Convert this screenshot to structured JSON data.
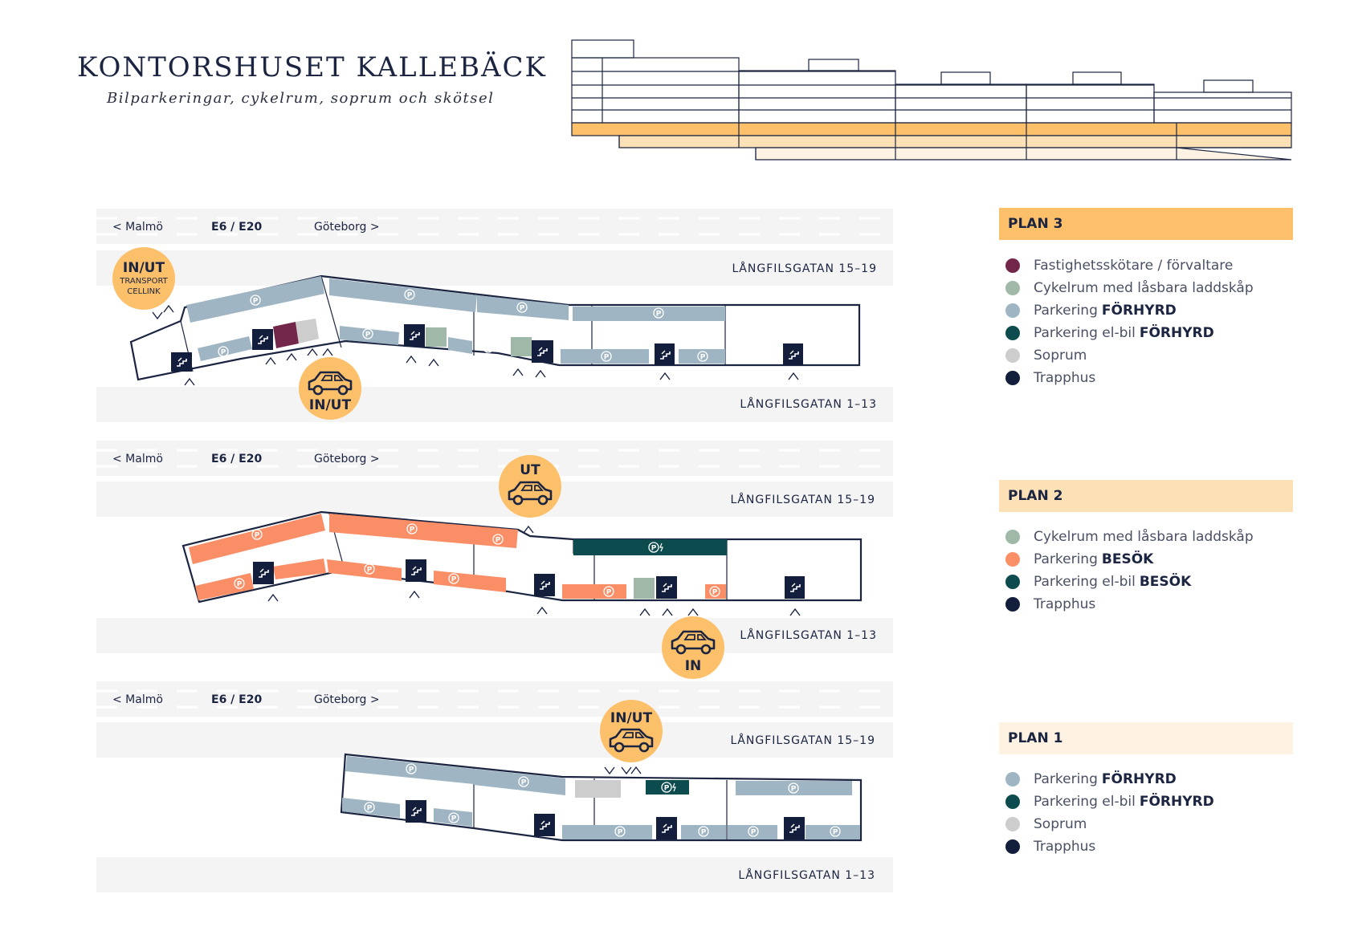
{
  "header": {
    "title": "KONTORSHUSET KALLEBÄCK",
    "subtitle": "Bilparkeringar, cykelrum, soprum och skötsel"
  },
  "colors": {
    "plan3": "#fcc06a",
    "plan2": "#fde1b6",
    "plan1": "#fef2e2",
    "parking_leased": "#9fb5c3",
    "parking_visitor": "#fa8e66",
    "ev_parking": "#0c4b4e",
    "bike_room": "#9fb8a8",
    "waste_room": "#cdcdcd",
    "facility_manager": "#72274a",
    "stairwell": "#131e3c",
    "entrance_badge": "#fcc06a",
    "road": "#f4f4f5",
    "text": "#1b2440"
  },
  "road": {
    "left": "< Malmö",
    "center": "E6 / E20",
    "right": "Göteborg >",
    "street_north": "LÅNGFILSGATAN 15–19",
    "street_south": "LÅNGFILSGATAN 1–13"
  },
  "plans": [
    {
      "name": "PLAN 3",
      "badges": [
        {
          "label": "IN/UT",
          "sublabel_1": "TRANSPORT",
          "sublabel_2": "CELLINK"
        },
        {
          "label": "IN/UT"
        }
      ],
      "legend": [
        {
          "color": "#72274a",
          "text": "Fastighetsskötare / förvaltare",
          "bold": ""
        },
        {
          "color": "#9fb8a8",
          "text": "Cykelrum med låsbara laddskåp",
          "bold": ""
        },
        {
          "color": "#9fb5c3",
          "text": "Parkering",
          "bold": "FÖRHYRD"
        },
        {
          "color": "#0c4b4e",
          "text": "Parkering el-bil",
          "bold": "FÖRHYRD"
        },
        {
          "color": "#cdcdcd",
          "text": "Soprum",
          "bold": ""
        },
        {
          "color": "#131e3c",
          "text": "Trapphus",
          "bold": ""
        }
      ]
    },
    {
      "name": "PLAN 2",
      "badges": [
        {
          "label": "UT"
        },
        {
          "label": "IN"
        }
      ],
      "legend": [
        {
          "color": "#9fb8a8",
          "text": "Cykelrum med låsbara laddskåp",
          "bold": ""
        },
        {
          "color": "#fa8e66",
          "text": "Parkering",
          "bold": "BESÖK"
        },
        {
          "color": "#0c4b4e",
          "text": "Parkering el-bil",
          "bold": "BESÖK"
        },
        {
          "color": "#131e3c",
          "text": "Trapphus",
          "bold": ""
        }
      ]
    },
    {
      "name": "PLAN 1",
      "badges": [
        {
          "label": "IN/UT"
        }
      ],
      "legend": [
        {
          "color": "#9fb5c3",
          "text": "Parkering",
          "bold": "FÖRHYRD"
        },
        {
          "color": "#0c4b4e",
          "text": "Parkering el-bil",
          "bold": "FÖRHYRD"
        },
        {
          "color": "#cdcdcd",
          "text": "Soprum",
          "bold": ""
        },
        {
          "color": "#131e3c",
          "text": "Trapphus",
          "bold": ""
        }
      ]
    }
  ],
  "icons": {
    "parking": "parking-icon",
    "ev_parking": "ev-parking-icon",
    "stairwell": "stairs-icon",
    "bike": "bicycle-icon",
    "waste": "recycle-icon",
    "car": "car-icon",
    "entry_arrow": "entry-arrow-icon"
  }
}
